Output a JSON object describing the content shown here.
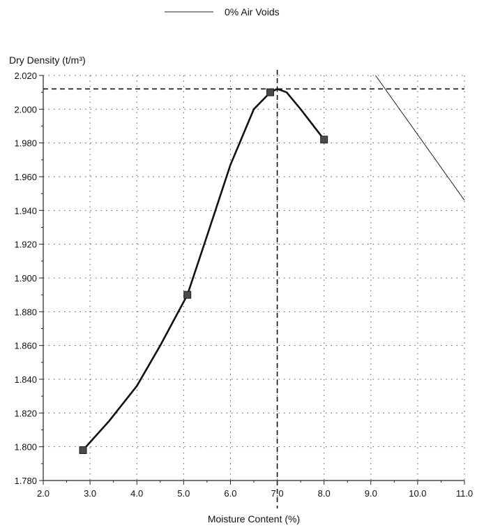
{
  "chart_data": {
    "type": "scatter",
    "title": "",
    "xlabel": "Moisture Content (%)",
    "ylabel": "Dry Density (t/m³)",
    "xlim": [
      2.0,
      11.0
    ],
    "ylim": [
      1.78,
      2.02
    ],
    "x_ticks": [
      "2.0",
      "3.0",
      "4.0",
      "5.0",
      "6.0",
      "7.0",
      "8.0",
      "9.0",
      "10.0",
      "11.0"
    ],
    "y_ticks": [
      "1.780",
      "1.800",
      "1.820",
      "1.840",
      "1.860",
      "1.880",
      "1.900",
      "1.920",
      "1.940",
      "1.960",
      "1.980",
      "2.000",
      "2.020"
    ],
    "grid": true,
    "legend": {
      "position": "top-center",
      "entries": [
        {
          "name": "0% Air Voids",
          "style": "thin-line"
        }
      ]
    },
    "series": [
      {
        "kind": "points",
        "marker": "square",
        "x": [
          2.85,
          5.08,
          6.85,
          8.0
        ],
        "y": [
          1.798,
          1.89,
          2.01,
          1.982
        ]
      },
      {
        "kind": "fitted-curve",
        "x": [
          2.85,
          3.4,
          4.0,
          4.5,
          5.08,
          5.5,
          6.0,
          6.5,
          6.85,
          7.0,
          7.2,
          7.5,
          8.0
        ],
        "y": [
          1.798,
          1.815,
          1.836,
          1.86,
          1.89,
          1.925,
          1.967,
          2.0,
          2.01,
          2.012,
          2.01,
          2.0,
          1.982
        ]
      },
      {
        "name": "0% Air Voids",
        "kind": "line",
        "x": [
          9.1,
          11.0
        ],
        "y": [
          2.02,
          1.946
        ]
      }
    ],
    "reference_lines": {
      "max_dry_density": 2.012,
      "optimum_moisture_content": 7.0
    }
  }
}
